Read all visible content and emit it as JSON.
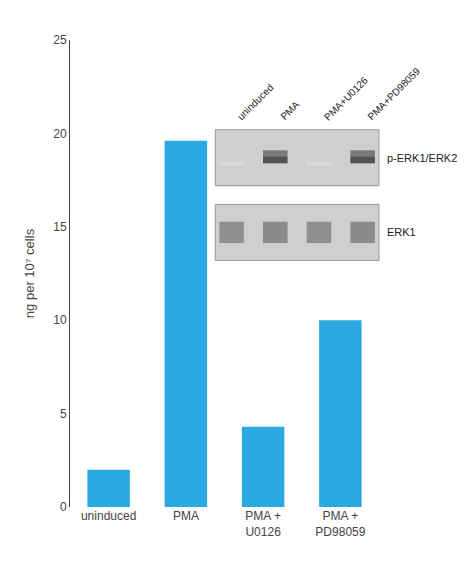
{
  "chart_data": {
    "type": "bar",
    "categories": [
      "uninduced",
      "PMA",
      "PMA +\nU0126",
      "PMA +\nPD98059"
    ],
    "values": [
      2.0,
      19.6,
      4.3,
      10.0
    ],
    "color": "#29ABE2",
    "ylabel": "ng per 10⁷ cells",
    "ylim": [
      0,
      25
    ],
    "yticks": [
      0,
      5,
      10,
      15,
      20,
      25
    ],
    "grid": false,
    "annotations": [
      "uninduced",
      "PMA",
      "PMA+U0126",
      "PMA+PD98059",
      "p-ERK1/ERK2",
      "ERK1"
    ]
  }
}
